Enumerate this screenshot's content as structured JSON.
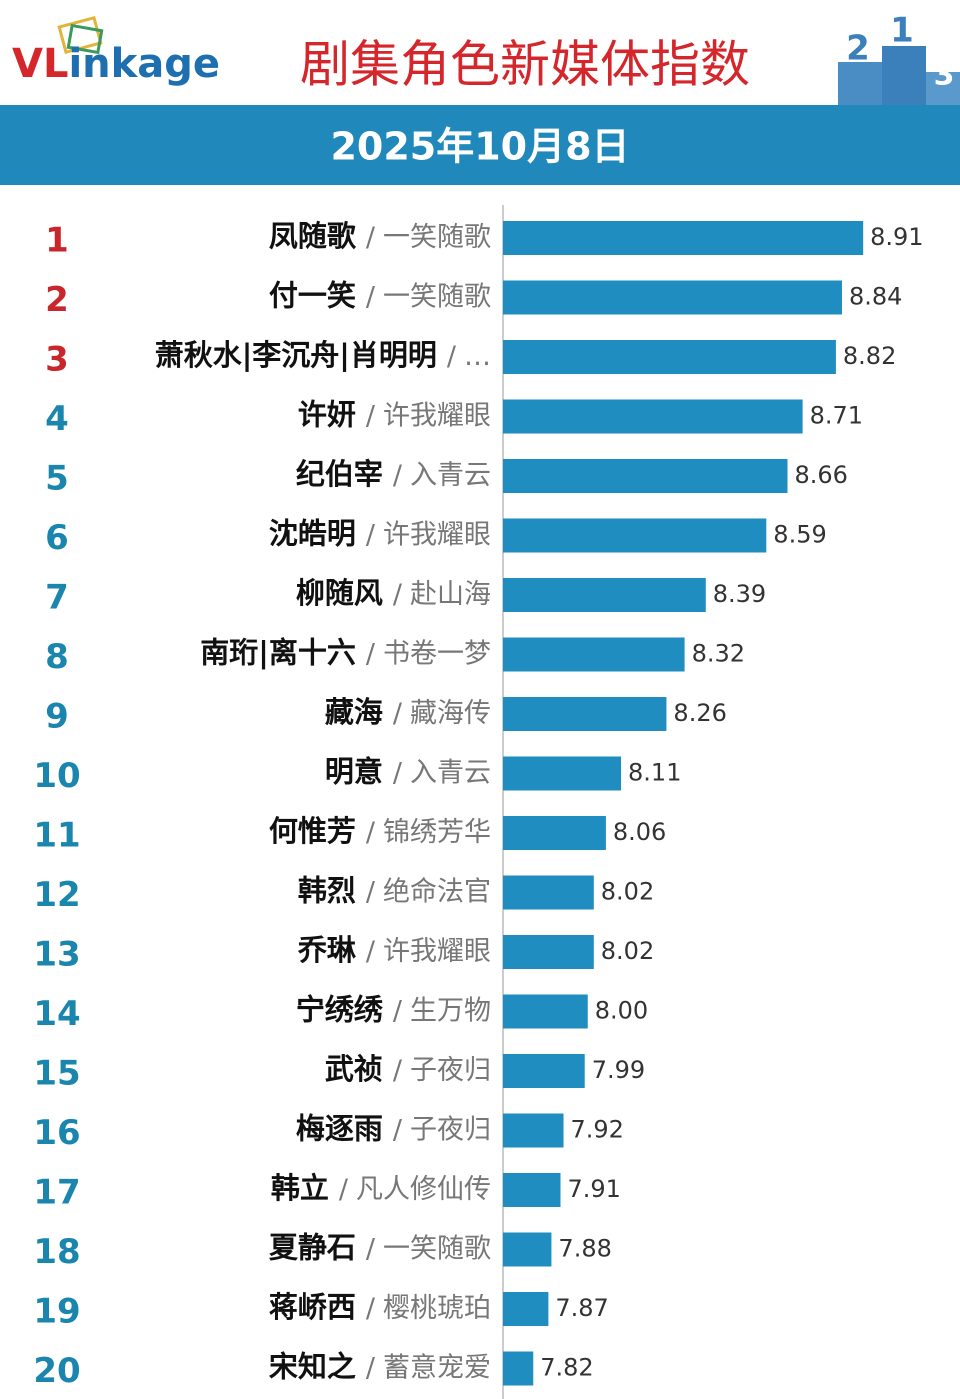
{
  "logo": [
    "VL",
    "inkage"
  ],
  "podium": [
    "2",
    "1",
    "3"
  ],
  "chart_data": {
    "type": "bar",
    "title": "剧集角色新媒体指数",
    "subtitle": "2025年10月8日",
    "separator": "/",
    "ranks": [
      1,
      2,
      3,
      4,
      5,
      6,
      7,
      8,
      9,
      10,
      11,
      12,
      13,
      14,
      15,
      16,
      17,
      18,
      19,
      20
    ],
    "categories": [
      "凤随歌",
      "付一笑",
      "萧秋水|李沉舟|肖明明",
      "许妍",
      "纪伯宰",
      "沈皓明",
      "柳随风",
      "南珩|离十六",
      "藏海",
      "明意",
      "何惟芳",
      "韩烈",
      "乔琳",
      "宁绣绣",
      "武祯",
      "梅逐雨",
      "韩立",
      "夏静石",
      "蒋峤西",
      "宋知之"
    ],
    "dramas": [
      "一笑随歌",
      "一笑随歌",
      "…",
      "许我耀眼",
      "入青云",
      "许我耀眼",
      "赴山海",
      "书卷一梦",
      "藏海传",
      "入青云",
      "锦绣芳华",
      "绝命法官",
      "许我耀眼",
      "生万物",
      "子夜归",
      "子夜归",
      "凡人修仙传",
      "一笑随歌",
      "樱桃琥珀",
      "蓄意宠爱"
    ],
    "values": [
      8.91,
      8.84,
      8.82,
      8.71,
      8.66,
      8.59,
      8.39,
      8.32,
      8.26,
      8.11,
      8.06,
      8.02,
      8.02,
      8.0,
      7.99,
      7.92,
      7.91,
      7.88,
      7.87,
      7.82
    ],
    "value_labels": [
      "8.91",
      "8.84",
      "8.82",
      "8.71",
      "8.66",
      "8.59",
      "8.39",
      "8.32",
      "8.26",
      "8.11",
      "8.06",
      "8.02",
      "8.02",
      "8.00",
      "7.99",
      "7.92",
      "7.91",
      "7.88",
      "7.87",
      "7.82"
    ],
    "color": "#1f8dbf",
    "xlim": [
      7.72,
      9.23
    ]
  }
}
